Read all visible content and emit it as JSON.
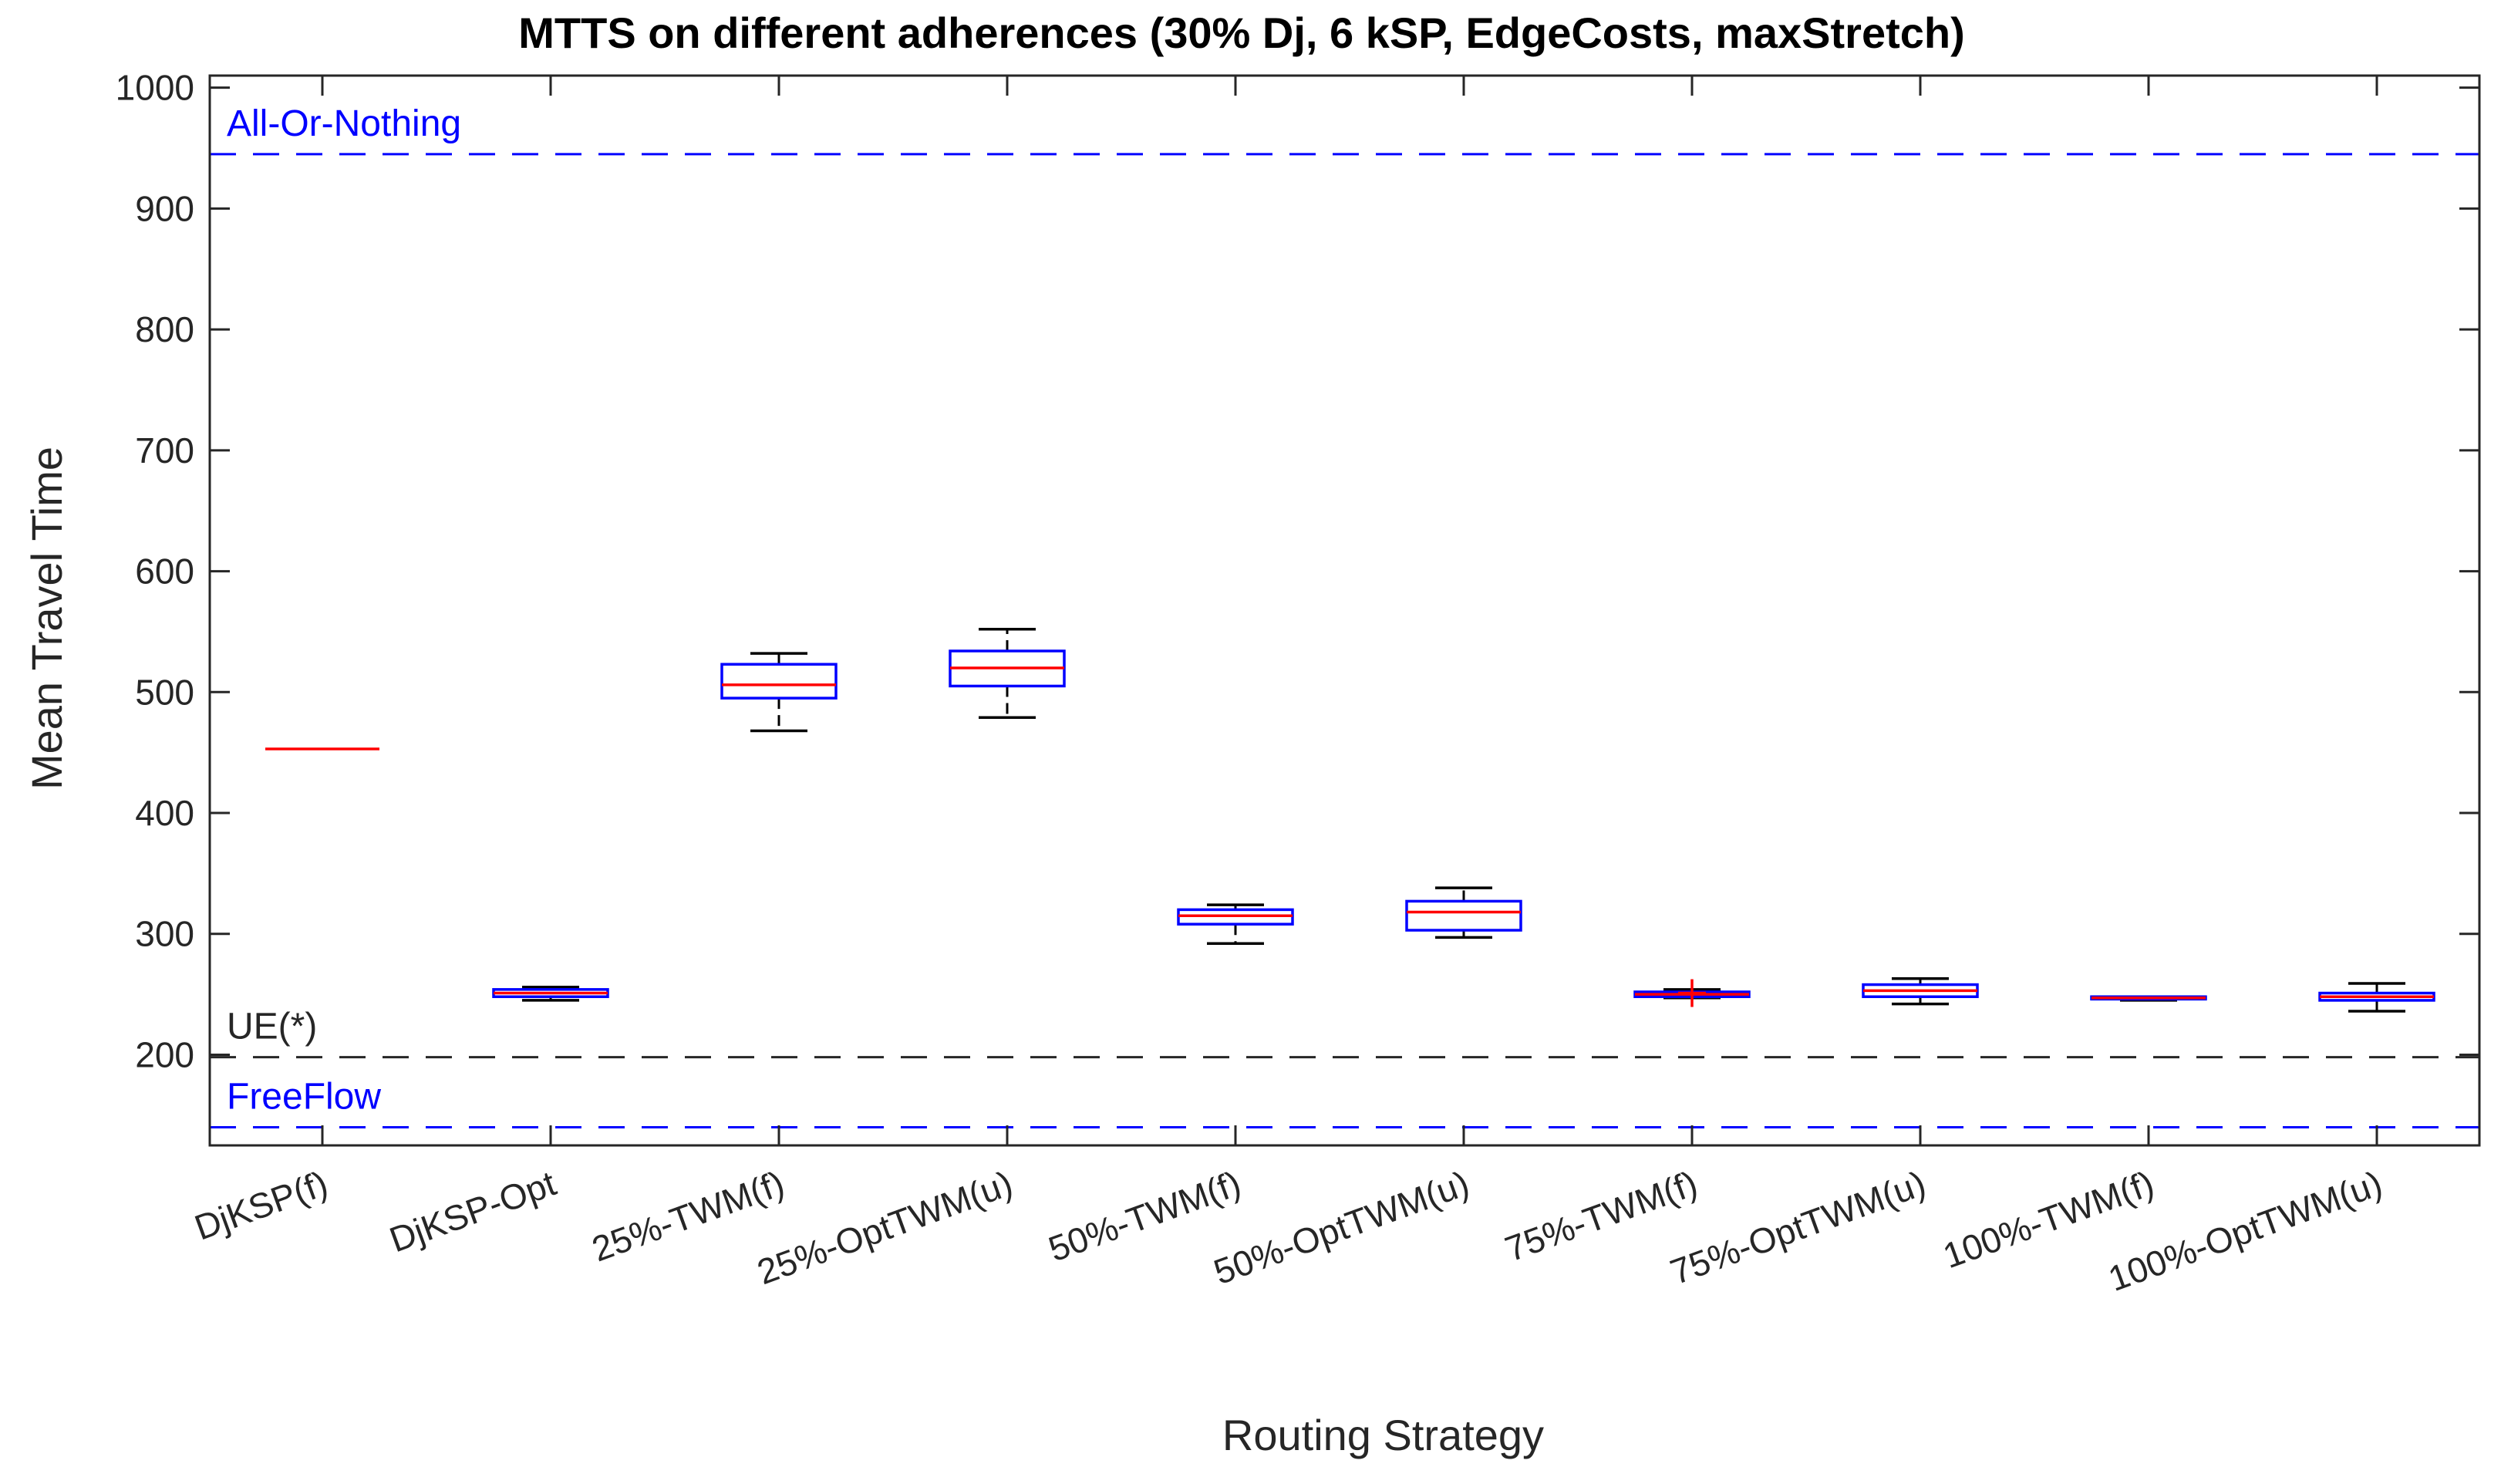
{
  "chart_data": {
    "type": "box",
    "title": "MTTS on different adherences (30% Dj, 6 kSP, EdgeCosts, maxStretch)",
    "xlabel": "Routing Strategy",
    "ylabel": "Mean Travel Time",
    "ylim": [
      125,
      1010
    ],
    "yticks": [
      200,
      300,
      400,
      500,
      600,
      700,
      800,
      900,
      1000
    ],
    "ytick_labels": [
      "200",
      "300",
      "400",
      "500",
      "600",
      "700",
      "800",
      "900",
      "1000"
    ],
    "categories": [
      "DjKSP(f)",
      "DjKSP-Opt",
      "25%-TWM(f)",
      "25%-OptTWM(u)",
      "50%-TWM(f)",
      "50%-OptTWM(u)",
      "75%-TWM(f)",
      "75%-OptTWM(u)",
      "100%-TWM(f)",
      "100%-OptTWM(u)"
    ],
    "boxes": [
      {
        "min": 453,
        "q1": 453,
        "median": 453,
        "q3": 453,
        "max": 453,
        "outliers": []
      },
      {
        "min": 245,
        "q1": 248,
        "median": 251,
        "q3": 254,
        "max": 256,
        "outliers": []
      },
      {
        "min": 468,
        "q1": 495,
        "median": 506,
        "q3": 523,
        "max": 532,
        "outliers": []
      },
      {
        "min": 479,
        "q1": 505,
        "median": 520,
        "q3": 534,
        "max": 552,
        "outliers": []
      },
      {
        "min": 292,
        "q1": 308,
        "median": 315,
        "q3": 320,
        "max": 324,
        "outliers": []
      },
      {
        "min": 297,
        "q1": 303,
        "median": 318,
        "q3": 327,
        "max": 338,
        "outliers": []
      },
      {
        "min": 247,
        "q1": 248,
        "median": 250,
        "q3": 252,
        "max": 254,
        "outliers": [
          251
        ]
      },
      {
        "min": 242,
        "q1": 248,
        "median": 253,
        "q3": 258,
        "max": 263,
        "outliers": []
      },
      {
        "min": 245,
        "q1": 246,
        "median": 247,
        "q3": 248,
        "max": 248,
        "outliers": []
      },
      {
        "min": 236,
        "q1": 245,
        "median": 248,
        "q3": 251,
        "max": 259,
        "outliers": []
      }
    ],
    "reference_lines": [
      {
        "label": "All-Or-Nothing",
        "value": 945,
        "color": "#0000ff"
      },
      {
        "label": "UE(*)",
        "value": 198,
        "color": "#262626"
      },
      {
        "label": "FreeFlow",
        "value": 140,
        "color": "#0000ff"
      }
    ],
    "colors": {
      "box": "#0000ff",
      "median": "#ff0000",
      "whisker": "#000000",
      "outlier": "#ff0000",
      "axis": "#262626"
    }
  }
}
